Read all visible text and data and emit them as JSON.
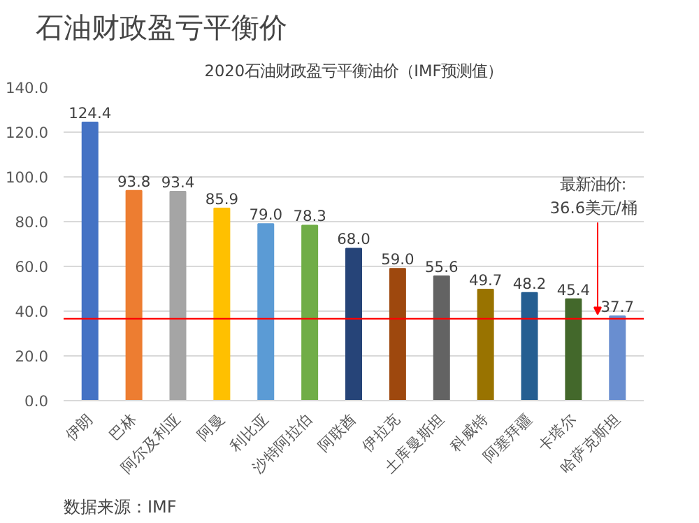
{
  "chart_data": {
    "type": "bar",
    "title": "石油财政盈亏平衡价",
    "subtitle": "2020石油财政盈亏平衡油价（IMF预测值）",
    "categories": [
      "伊朗",
      "巴林",
      "阿尔及利亚",
      "阿曼",
      "利比亚",
      "沙特阿拉伯",
      "阿联酋",
      "伊拉克",
      "土库曼斯坦",
      "科威特",
      "阿塞拜疆",
      "卡塔尔",
      "哈萨克斯坦"
    ],
    "values": [
      124.4,
      93.8,
      93.4,
      85.9,
      79.0,
      78.3,
      68.0,
      59.0,
      55.6,
      49.7,
      48.2,
      45.4,
      37.7
    ],
    "colors": [
      "#4472c4",
      "#ed7d31",
      "#a5a5a5",
      "#ffc000",
      "#5b9bd5",
      "#70ad47",
      "#264478",
      "#9e480e",
      "#636363",
      "#997300",
      "#255e91",
      "#43682b",
      "#698ed0"
    ],
    "value_labels": [
      "124.4",
      "93.8",
      "93.4",
      "85.9",
      "79.0",
      "78.3",
      "68.0",
      "59.0",
      "55.6",
      "49.7",
      "48.2",
      "45.4",
      "37.7"
    ],
    "ylim": [
      0,
      140
    ],
    "yticks": [
      {
        "value": 0,
        "label": "0.0"
      },
      {
        "value": 20,
        "label": "20.0"
      },
      {
        "value": 40,
        "label": "40.0"
      },
      {
        "value": 60,
        "label": "60.0"
      },
      {
        "value": 80,
        "label": "80.0"
      },
      {
        "value": 100,
        "label": "100.0"
      },
      {
        "value": 120,
        "label": "120.0"
      },
      {
        "value": 140,
        "label": "140.0"
      }
    ],
    "grid": "y",
    "ref_lines": [
      {
        "axis": "y",
        "value": 36.6,
        "label": "最新油价:\n36.6美元/桶",
        "color": "#ff0000"
      }
    ],
    "annotations": [
      "数据来源：IMF"
    ]
  }
}
